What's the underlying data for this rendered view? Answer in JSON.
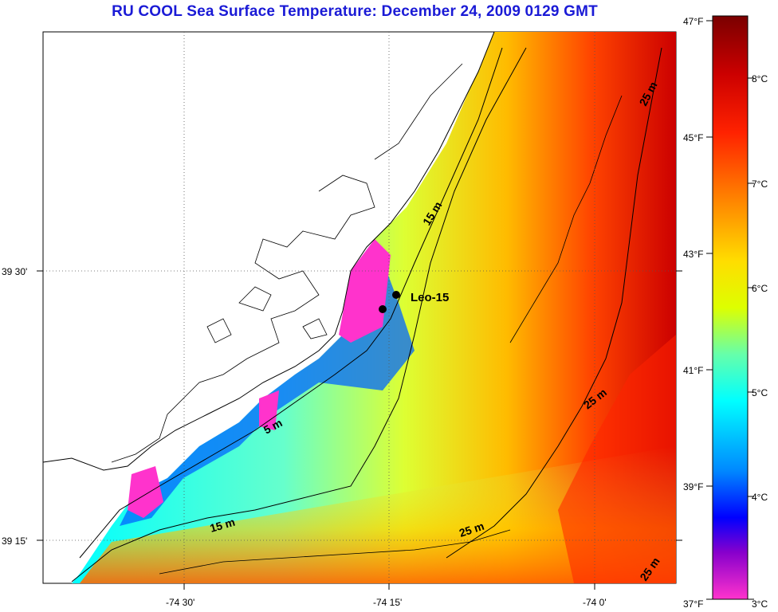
{
  "title": "RU COOL  Sea Surface Temperature:  December 24, 2009 0129 GMT",
  "map": {
    "lat_labels": [
      "39 30'",
      "39 15'"
    ],
    "lon_labels": [
      "-74 30'",
      "-74 15'",
      "-74 0'"
    ],
    "station_label": "Leo-15",
    "contour_labels": [
      "15 m",
      "5 m",
      "15 m",
      "25 m",
      "25 m",
      "25 m",
      "25 m"
    ]
  },
  "colorbar": {
    "f_labels": [
      "47°F",
      "45°F",
      "43°F",
      "41°F",
      "39°F",
      "37°F"
    ],
    "c_labels": [
      "8°C",
      "7°C",
      "6°C",
      "5°C",
      "4°C",
      "3°C"
    ],
    "colors": [
      "#7a0000",
      "#cc0000",
      "#ff3300",
      "#ff8800",
      "#ffdd00",
      "#ddff00",
      "#66ffaa",
      "#00ffff",
      "#0088ff",
      "#0000ff",
      "#8800cc",
      "#ff33cc"
    ]
  }
}
